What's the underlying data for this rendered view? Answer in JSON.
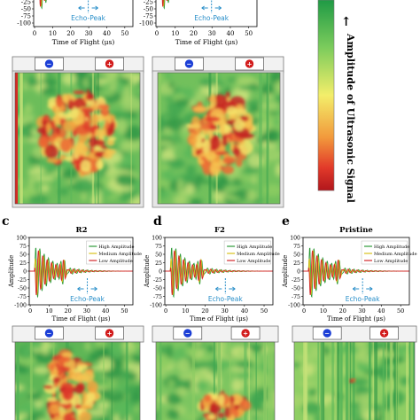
{
  "colorbar": {
    "label": "Amplitude of Ultrasonic Signal",
    "arrow": "←",
    "colors": [
      "#1f9a45",
      "#7ccc5c",
      "#f3ee6a",
      "#f29a3c",
      "#e23a2a",
      "#b1161c"
    ]
  },
  "top_plots": [
    {
      "xlabel": "Time of Flight (μs)",
      "xticks": [
        "0",
        "10",
        "20",
        "30",
        "40",
        "50"
      ],
      "yticks": [
        "-25",
        "-50",
        "-75",
        "-100"
      ],
      "echo_label": "Echo-Peak"
    },
    {
      "xlabel": "Time of Flight (μs)",
      "xticks": [
        "0",
        "10",
        "20",
        "30",
        "40",
        "50"
      ],
      "yticks": [
        "-25",
        "-50",
        "-75",
        "-100"
      ],
      "echo_label": "Echo-Peak"
    }
  ],
  "panels": [
    {
      "letter": "c",
      "title": "R2",
      "ylabel": "Amplitude",
      "xlabel": "Time of Flight (μs)",
      "xticks": [
        "0",
        "10",
        "20",
        "30",
        "40",
        "50"
      ],
      "yticks": [
        "100",
        "75",
        "50",
        "25",
        "0",
        "-25",
        "-50",
        "-75",
        "-100"
      ],
      "legend": [
        "High Amplitude",
        "Medium Amplitude",
        "Low Amplitude"
      ],
      "echo_label": "Echo-Peak"
    },
    {
      "letter": "d",
      "title": "F2",
      "ylabel": "Amplitude",
      "xlabel": "Time of Flight (μs)",
      "xticks": [
        "0",
        "10",
        "20",
        "30",
        "40",
        "50"
      ],
      "yticks": [
        "100",
        "75",
        "50",
        "25",
        "0",
        "-25",
        "-50",
        "-75",
        "-100"
      ],
      "legend": [
        "High Amplitude",
        "Medium Amplitude",
        "Low Amplitude"
      ],
      "echo_label": "Echo-Peak"
    },
    {
      "letter": "e",
      "title": "Pristine",
      "ylabel": "Amplitude",
      "xlabel": "Time of Flight (μs)",
      "xticks": [
        "0",
        "10",
        "20",
        "30",
        "40",
        "50"
      ],
      "yticks": [
        "100",
        "75",
        "50",
        "25",
        "0",
        "-25",
        "-50",
        "-75",
        "-100"
      ],
      "legend": [
        "High Amplitude",
        "Medium Amplitude",
        "Low Amplitude"
      ],
      "echo_label": "Echo-Peak"
    }
  ],
  "series_colors": {
    "high": "#2e9b3a",
    "medium": "#d9c21a",
    "low": "#d2282b"
  },
  "probe_symbols": {
    "left": "−",
    "right": "+"
  },
  "probe_colors": {
    "left": "#1c3fd6",
    "right": "#d21c1c"
  }
}
